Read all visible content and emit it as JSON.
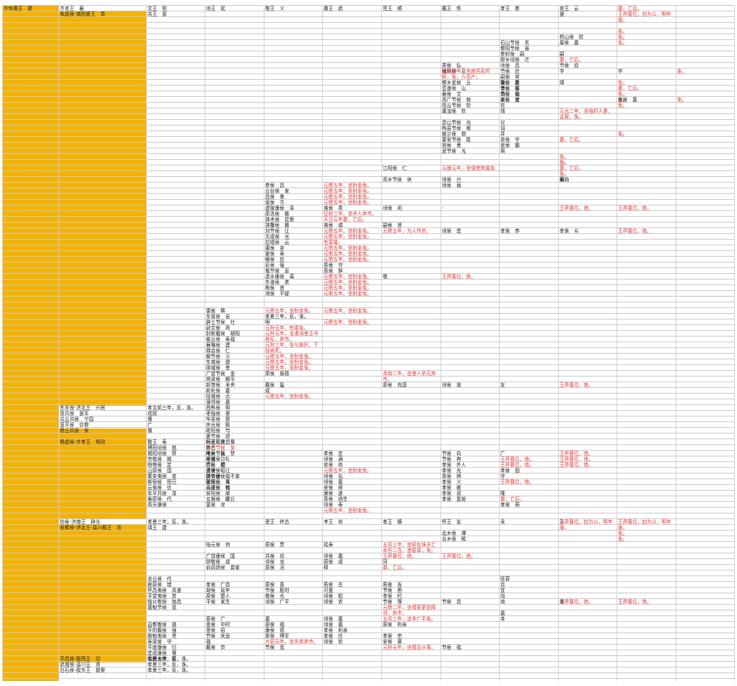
{
  "colors": {
    "block": "#f4b301",
    "red_note": "#e53030",
    "grid": "#c9c9c9"
  },
  "table": {
    "col0": [
      "齐悼惠王　肥"
    ],
    "col1": [
      "齐哀王　襄",
      "朱虚侯-城阳景王　章",
      "东牟侯-济北王　兴居",
      "管共侯　罢军",
      "瓜丘共侯　宁国",
      "营平侯　信都",
      "杨丘共侯　安",
      "杨虚侯-齐孝王　将闾",
      "扐侯-济南王　辟光",
      "安都侯-济北王-菑川懿王　志",
      "平昌侯-胶西王　卬",
      "武城侯-菑川王　贤",
      "白石侯-胶东王　雄渠"
    ],
    "col2": [
      "文王　则",
      "共王　喜",
      "孝文前三年，反，诛。",
      "戎奴",
      "偃",
      "广",
      "偃",
      "懿王　寿",
      "搏阳顷侯　就",
      "城阳顷侯　荐",
      "宗敬侯　越",
      "柏畅侯　定",
      "山原侯　国",
      "繁安夷侯　忠",
      "柳宿侯　阳已",
      "云夷侯　信",
      "牟平共侯　渫",
      "柴原侯　代",
      "高乐康侯",
      "孝景三年，反，诛。",
      "靖王　建",
      "龙丘侯　代",
      "剧原侯　错",
      "怀昌夷侯　高遂",
      "平望夷侯　赏",
      "临众敬侯　始昌",
      "葛魁节侯　宽",
      "益都敬侯　胡",
      "平的戴侯　强",
      "剧魁夷侯　黑",
      "寿梁侯　守",
      "平度康侯　衍",
      "宜成康侯　偃",
      "临朐夷侯　奴",
      "孝景三年，反，诛。",
      "孝景三年，反，诛。",
      "孝景三年，反，诛。"
    ],
    "col3": [
      "顷王　延",
      "雷侯　豨",
      "东莞侯　吉",
      "辟土节侯　壮",
      "尉文侯　丙",
      "封斯戴侯　胡阳",
      "榆丘侯　寿福",
      "襄嚵侯　建",
      "邯会侯　仁",
      "朝节侯　义",
      "东城侯　遗",
      "阴城侯　苍",
      "广望节侯　忠",
      "将梁侯　朝平",
      "新馆侯　未央",
      "新处侯　嘉",
      "陉城侯　贞",
      "蒲领侯　嘉",
      "西熊侯　明",
      "枣强侯　晏",
      "毕梁侯　婴",
      "房光侯　殷",
      "距阳侯　匄",
      "蒌节侯　退",
      "阿武戴侯　豫",
      "参户节侯　免",
      "州乡节侯　禁",
      "平城侯　礼",
      "广侯　顺",
      "盖胥侯　让",
      "阴安康侯　不害",
      "荣关侯　骞",
      "周坚侯　何",
      "安阳侯　桀",
      "五据侯　臞丘",
      "富侯　龙",
      "厉王　次昌",
      "终古",
      "睢侯　弘",
      "剧侯　卬",
      "德侯　佗",
      "须侯　昭",
      "挟节侯　福",
      "胶阳侯　义",
      "元成侯　敖",
      "陆元侯　何",
      "广饶康侯　国",
      "缾敬侯　成",
      "俞闾炀侯　毋害",
      "孝侯　广昌",
      "胡侯　延年",
      "原侯　楚人",
      "平侯　某生",
      "原侯　广",
      "思侯　中时",
      "思侯　招",
      "节侯　庆忌",
      "福",
      "戴侯　奈"
    ],
    "col4": [
      "敬王　义",
      "参侯　昌",
      "丘台侯　发",
      "昌侯　差",
      "蓥侯　方",
      "虚陵康侯　泽",
      "原洛侯　敢",
      "挟术侯　昆景",
      "挟釐侯　霸",
      "刘节侯　让",
      "文成侯　光",
      "拉缮侯　云",
      "庸侯　余",
      "翟侯　寿",
      "鳣侯　应",
      "彭侯　强",
      "瓡节侯　息",
      "虚水康侯　禹",
      "东淮侯　类",
      "栒侯　贤",
      "淯侯　不疑",
      "元鼎五年，坐酎金免。",
      "孝景三年，反，诛。",
      "明",
      "元狩元年，有罪免。",
      "元狩元年，坐遣谒者王书称反，弃市。",
      "元狩三年，坐与姊奸，下狱病死。",
      "元鼎五年，坐酎金免。",
      "元鼎五年，坐酎金免。",
      "元鼎五年，坐酎金免。",
      "原侯　报德",
      "戴侯　猛",
      "成",
      "元鼎五年，坐酎金免。",
      "思王　终古",
      "原侯　贾",
      "共侯　坊",
      "顷侯　龙",
      "原侯　况",
      "原侯　喜",
      "节侯　胜时",
      "敬侯　光",
      "顷侯　广平",
      "嘉",
      "原侯　福",
      "康侯　德",
      "质侯　博军",
      "大初元年，坐杀弟弃市。",
      "节侯　宽"
    ],
    "col5": [
      "惠王　武",
      "元鼎五年，坐酎金免。",
      "元鼎五年，坐酎金免。",
      "元鼎五年，坐酎金免。",
      "元鼎五年，坐酎金免。",
      "夷侯　青",
      "征和三年，坐杀人弃市。",
      "天汉元年薨，亡后。",
      "夷侯　咸",
      "元鼎五年，坐酎金免。",
      "元鼎五年，坐酎金免。",
      "有罪废。",
      "元鼎五年，坐酎金免。",
      "元鼎五年，坐酎金免。",
      "元鼎五年，坐酎金免。",
      "质侯　守",
      "质侯　鲜",
      "元鼎五年，坐酎金免。",
      "元鼎五年，坐酎金免。",
      "元鼎五年，坐酎金免。",
      "元鼎五年，坐酎金免。",
      "元鼎五年，坐酎金免。",
      "元鼎五年，坐酎金免。",
      "孝侯　定",
      "顷侯　满",
      "哀侯　尚",
      "元鼎五年，坐酎金免。",
      "顷侯　弘",
      "顷侯　嘉",
      "安侯　舜",
      "康侯　遂",
      "质侯　炀生",
      "顷侯　寿",
      "元鼎五年，坐酎金免。",
      "考王　尚",
      "延寿",
      "顷侯　嘉",
      "原侯　成",
      "释",
      "质侯　古",
      "可置",
      "顷侯　起",
      "顷侯　农",
      "顷侯　嘉",
      "顷侯　嘉",
      "孝侯　利亲",
      "孝侯　信",
      "顷侯　钦"
    ],
    "col6": [
      "荒王　顺",
      "江阳侯　仁",
      "高乡节侯　休",
      "顷侯　闲",
      "元鼎五年，为人所杀。",
      "嗣侯　贤",
      "敬",
      "本始二年，坐使人杀兄弃市。",
      "孝王　横",
      "五凤三年，坐知女妹夫亡命笞二百，首匿罪，免。",
      "王莽篡位，绝。",
      "同",
      "薨，亡后。",
      "质侯　吉",
      "节侯　圉",
      "孝侯　约",
      "节侯　理",
      "元鼎二年，坐缮家更恐阁邻，弃市。",
      "五凤三年，坐非广平免。",
      "原侯　充国",
      "原侯　利亲",
      "孝侯　宗",
      "安侯　猜",
      "元狩元年，坐擅治从事。"
    ],
    "col7": [
      "戴王　佚",
      "质侯　弘",
      "穰阳侯　丑",
      "都乡爱侯　丘",
      "壶遂侯　山",
      "襄侯　文",
      "高广节侯　勃",
      "阳丘节侯　钦",
      "庸湟侯　钦",
      "昆山节侯　光",
      "昫县节侯　根",
      "据兰侯　倒",
      "要安节侯　胜",
      "宛侯　勇",
      "武节侯　光",
      "建始四年，坐惑邑民所鲜，免，六百户。",
      "元康元年，坐侵使附属免",
      "顷侯　兴",
      "顷侯　丽",
      "-",
      "顷侯　恩",
      "王莽篡位，绝。",
      "顷侯　道",
      "节侯　向",
      "节侯　冉",
      "孝侯　外人",
      "孝侯　光",
      "质侯　辨",
      "孝侯　义",
      "孝侯　雍",
      "孝侯　说",
      "孝侯　复始",
      "怀王　友",
      "北乡侯　谭",
      "台乡侯　畯",
      "王莽篡位，绝。",
      "节侯　昌",
      "节侯　福"
    ],
    "col8": [
      "孝王　景",
      "石山节侯　玄",
      "都阳节侯　宙",
      "参封侯　嗣",
      "即乡顷侯　迁",
      "顷侯　昌",
      "节侯　应",
      "嗣侯　常",
      "釐侯　嘉",
      "孝侯　信",
      "炀侯　山",
      "孝侯　宝",
      "顷侯　新",
      "节侯　寡",
      "节侯　霸",
      "哀侯　对",
      "钦",
      "靖",
      "仪",
      "羽",
      "并",
      "哀侯　守",
      "哀侯　霸",
      "萌",
      "孝侯　恭",
      "友",
      "广",
      "王莽篡位，绝。",
      "王莽篡位，绝。",
      "孝侯　固",
      "守",
      "王莽篡位，绝。",
      "隆",
      "薨，亡后。",
      "孝侯　萌",
      "永",
      "且",
      "商",
      "宜",
      "向",
      "嘉",
      "幸",
      "旺容"
    ],
    "col9": [
      "哀王　云",
      "便",
      "枳山侯　钦",
      "属侯　嘉",
      "王莽篡位，绝。",
      "靖",
      "嗣",
      "薨，亡后。",
      "节侯　应",
      "宇",
      "元光二年，坐强奸人妻，会赦，免。",
      "薨，亡后。",
      "免。",
      "免。",
      "薨，亡后。",
      "免。",
      "萌",
      "孝侯　众",
      "王莽篡位，绝。",
      "慕始",
      "免。",
      "永",
      "王莽篡位，绝。",
      "王莽篡位，绝。",
      "王莽篡位，绝。",
      "王莽篡位，封为公，明年废。",
      "王莽篡位，绝。",
      "商"
    ],
    "col10": [
      "薨，亡后。",
      "王莽篡位，封为公，明年废。",
      "免。",
      "免。",
      "免。",
      "宇",
      "免。",
      "薨，亡后。",
      "免。",
      "免。",
      "免。",
      "哀侯　嘉",
      "免。",
      "王莽篡位，绝。",
      "免。",
      "免。",
      "王莽篡位，绝。",
      "王莽篡位，封为公，明年废。",
      "王莽篡位，绝。"
    ],
    "col11": [
      "免。",
      "免。"
    ]
  }
}
